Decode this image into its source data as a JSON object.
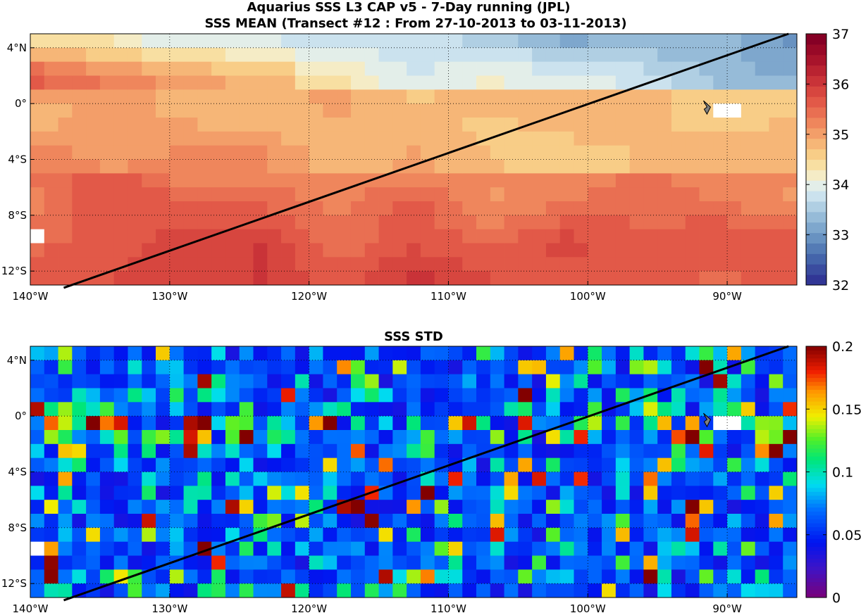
{
  "chart_data": [
    {
      "type": "heatmap",
      "title": "Aquarius SSS L3 CAP v5 - 7-Day running (JPL)",
      "subtitle": "SSS MEAN (Transect #12 : From 27-10-2013 to 03-11-2013)",
      "xlim": [
        -140,
        -85
      ],
      "ylim": [
        -13,
        5
      ],
      "x_ticks": [
        -140,
        -130,
        -120,
        -110,
        -100,
        -90
      ],
      "x_tick_labels": [
        "140°W",
        "130°W",
        "120°W",
        "110°W",
        "100°W",
        "90°W"
      ],
      "y_ticks": [
        4,
        0,
        -4,
        -8,
        -12
      ],
      "y_tick_labels": [
        "4°N",
        "0°",
        "4°S",
        "8°S",
        "12°S"
      ],
      "grid": "dotted",
      "colorbar": {
        "min": 32,
        "max": 37,
        "steps": 24,
        "ticks": [
          32,
          33,
          34,
          35,
          36,
          37
        ],
        "tick_labels": [
          "32",
          "33",
          "34",
          "35",
          "36",
          "37"
        ],
        "colors": [
          "#313695",
          "#3a4c9f",
          "#4464aa",
          "#547bb5",
          "#6892c1",
          "#7ea7cd",
          "#96bbd8",
          "#b0cfe3",
          "#cbe2ee",
          "#e3eee9",
          "#f5ecc6",
          "#f8dfa2",
          "#f8cd87",
          "#f6b677",
          "#f39e69",
          "#ef865c",
          "#e96f52",
          "#e25948",
          "#d7463f",
          "#c93338",
          "#b92331",
          "#a8142b",
          "#980927",
          "#860025"
        ]
      },
      "transect": {
        "start": [
          -137.6,
          -13.2
        ],
        "end": [
          -85.6,
          5.0
        ]
      },
      "marker": {
        "x": -91.5,
        "y": -0.2
      },
      "missing_cells": [
        [
          -140,
          -9,
          1
        ],
        [
          -91,
          0,
          2
        ]
      ],
      "field": {
        "description": "Gridded sea surface salinity (psu), 1-degree cells, latitude 5N to 13S",
        "north_blue_region": "34.0-33.0 north of 0, increasing freshness toward east",
        "equatorial_band": "34.5-35.0",
        "south_region": "35.3-36.2"
      }
    },
    {
      "type": "heatmap",
      "title": "SSS STD",
      "xlim": [
        -140,
        -85
      ],
      "ylim": [
        -13,
        5
      ],
      "x_ticks": [
        -140,
        -130,
        -120,
        -110,
        -100,
        -90
      ],
      "x_tick_labels": [
        "140°W",
        "130°W",
        "120°W",
        "110°W",
        "100°W",
        "90°W"
      ],
      "y_ticks": [
        4,
        0,
        -4,
        -8,
        -12
      ],
      "y_tick_labels": [
        "4°N",
        "0°",
        "4°S",
        "8°S",
        "12°S"
      ],
      "grid": "dotted",
      "colorbar": {
        "min": 0,
        "max": 0.2,
        "steps": 64,
        "ticks": [
          0,
          0.05,
          0.1,
          0.15,
          0.2
        ],
        "tick_labels": [
          "0",
          "0.05",
          "0.1",
          "0.15",
          "0.2"
        ],
        "colormap": "jet-like (purple-blue-cyan-green-yellow-red-darkred)"
      },
      "transect": {
        "start": [
          -137.6,
          -13.2
        ],
        "end": [
          -85.6,
          5.0
        ]
      },
      "marker": {
        "x": -91.5,
        "y": -0.2
      },
      "missing_cells": [
        [
          -140,
          -9,
          1
        ],
        [
          -91,
          0,
          2
        ]
      ],
      "field": {
        "description": "Standard deviation of SSS (psu), 1-degree cells, noisy field mostly 0.01-0.07 with peaks ~0.2 near 0 and 9S"
      }
    }
  ]
}
